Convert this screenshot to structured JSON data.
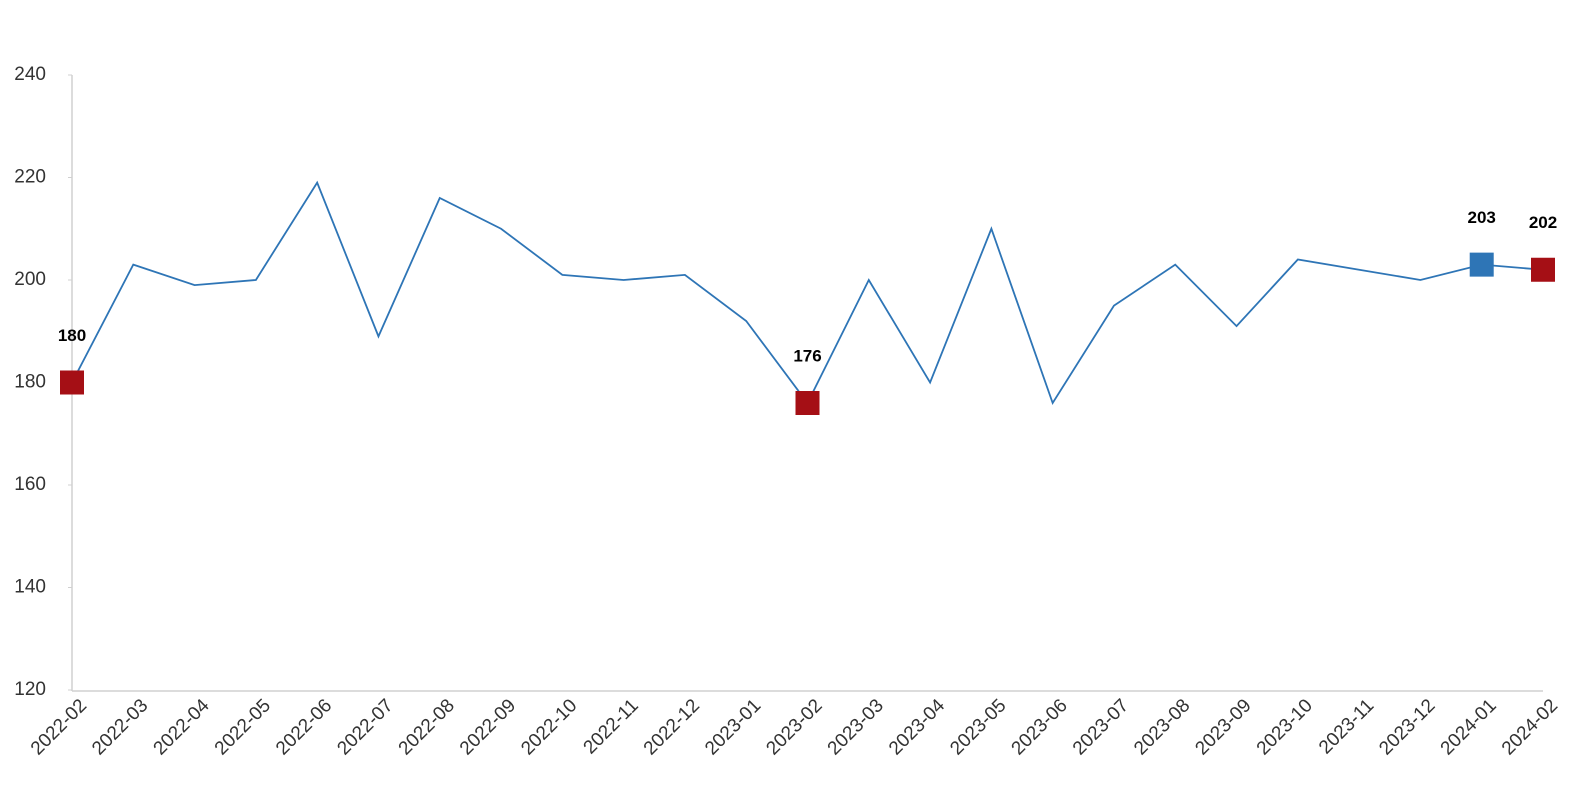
{
  "chart_data": {
    "type": "line",
    "categories": [
      "2022-02",
      "2022-03",
      "2022-04",
      "2022-05",
      "2022-06",
      "2022-07",
      "2022-08",
      "2022-09",
      "2022-10",
      "2022-11",
      "2022-12",
      "2023-01",
      "2023-02",
      "2023-03",
      "2023-04",
      "2023-05",
      "2023-06",
      "2023-07",
      "2023-08",
      "2023-09",
      "2023-10",
      "2023-11",
      "2023-12",
      "2024-01",
      "2024-02"
    ],
    "values": [
      180,
      203,
      199,
      200,
      219,
      189,
      216,
      210,
      201,
      200,
      201,
      192,
      176,
      200,
      180,
      210,
      176,
      195,
      203,
      191,
      204,
      202,
      200,
      203,
      202
    ],
    "color": "#2e75b6",
    "marker_colors": [
      "#a50f15",
      null,
      null,
      null,
      null,
      null,
      null,
      null,
      null,
      null,
      null,
      null,
      "#a50f15",
      null,
      null,
      null,
      null,
      null,
      null,
      null,
      null,
      null,
      null,
      "#2e75b6",
      "#a50f15"
    ],
    "ylim": [
      120,
      240
    ],
    "yticks": [
      120,
      140,
      160,
      180,
      200,
      220,
      240
    ],
    "grid": false
  }
}
